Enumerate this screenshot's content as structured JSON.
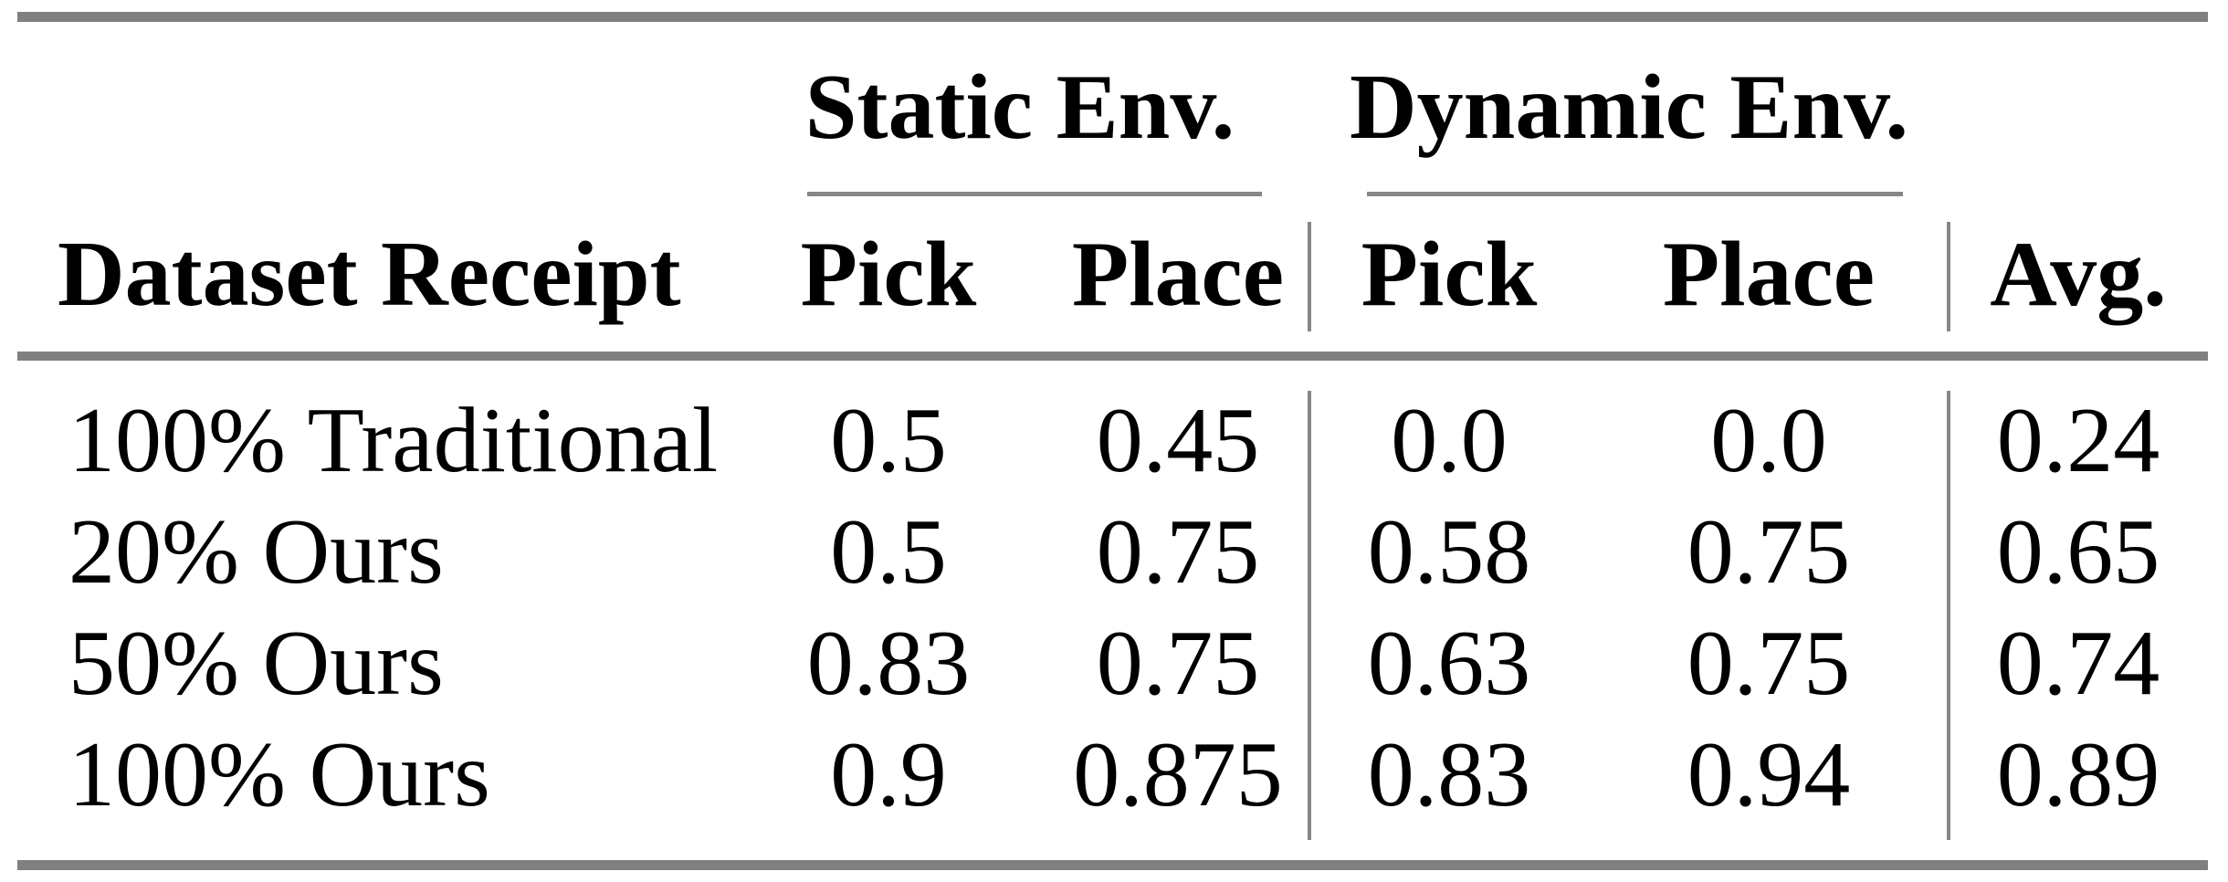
{
  "table": {
    "col_groups": [
      {
        "label": "Static Env.",
        "columns": [
          "Pick",
          "Place"
        ]
      },
      {
        "label": "Dynamic Env.",
        "columns": [
          "Pick",
          "Place"
        ]
      }
    ],
    "columns": [
      "Dataset Receipt",
      "Pick",
      "Place",
      "Pick",
      "Place",
      "Avg."
    ],
    "rows": [
      [
        "100% Traditional",
        "0.5",
        "0.45",
        "0.0",
        "0.0",
        "0.24"
      ],
      [
        "20% Ours",
        "0.5",
        "0.75",
        "0.58",
        "0.75",
        "0.65"
      ],
      [
        "50% Ours",
        "0.83",
        "0.75",
        "0.63",
        "0.75",
        "0.74"
      ],
      [
        "100% Ours",
        "0.9",
        "0.875",
        "0.83",
        "0.94",
        "0.89"
      ]
    ],
    "colors": {
      "rule_thick": "#808080",
      "rule_thin": "#878787",
      "text": "#000000",
      "background": "#ffffff"
    }
  },
  "chart_data": {
    "type": "table",
    "title": "",
    "column_groups": [
      "",
      "Static Env.",
      "Static Env.",
      "Dynamic Env.",
      "Dynamic Env.",
      ""
    ],
    "columns": [
      "Dataset Receipt",
      "Pick",
      "Place",
      "Pick",
      "Place",
      "Avg."
    ],
    "rows": [
      [
        "100% Traditional",
        0.5,
        0.45,
        0.0,
        0.0,
        0.24
      ],
      [
        "20% Ours",
        0.5,
        0.75,
        0.58,
        0.75,
        0.65
      ],
      [
        "50% Ours",
        0.83,
        0.75,
        0.63,
        0.75,
        0.74
      ],
      [
        "100% Ours",
        0.9,
        0.875,
        0.83,
        0.94,
        0.89
      ]
    ]
  }
}
